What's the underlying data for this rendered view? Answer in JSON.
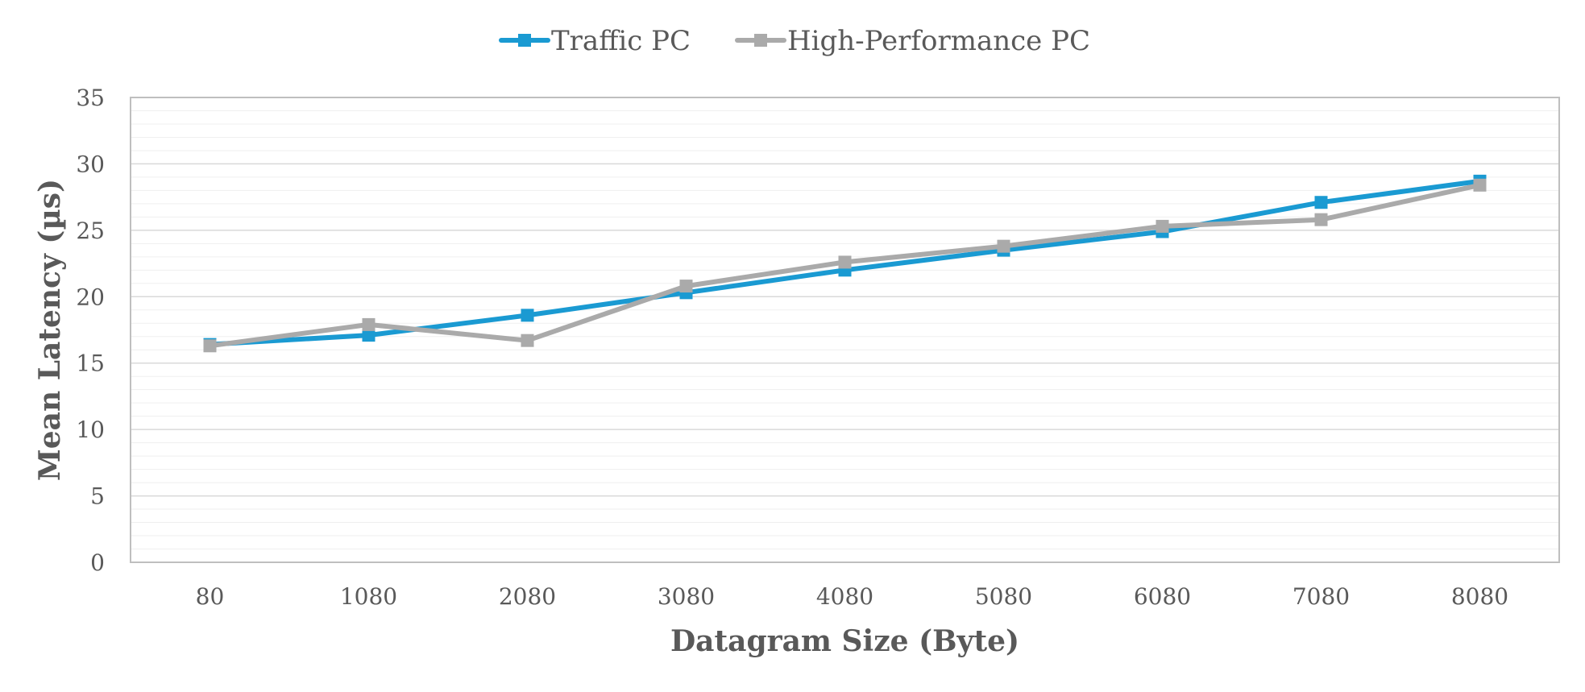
{
  "chart_data": {
    "type": "line",
    "title": "",
    "xlabel": "Datagram Size (Byte)",
    "ylabel": "Mean Latency (µs)",
    "categories": [
      "80",
      "1080",
      "2080",
      "3080",
      "4080",
      "5080",
      "6080",
      "7080",
      "8080"
    ],
    "y_ticks": [
      "0",
      "5",
      "10",
      "15",
      "20",
      "25",
      "30",
      "35"
    ],
    "ylim": [
      0,
      35
    ],
    "major_grid": true,
    "minor_grid": true,
    "legend_position": "top-center",
    "series": [
      {
        "name": "Traffic PC",
        "color": "#1a9ad2",
        "marker": "square",
        "values": [
          16.4,
          17.1,
          18.6,
          20.3,
          22.0,
          23.5,
          24.9,
          27.1,
          28.7
        ]
      },
      {
        "name": "High-Performance PC",
        "color": "#aaaaaa",
        "marker": "square",
        "values": [
          16.3,
          17.9,
          16.7,
          20.8,
          22.6,
          23.8,
          25.3,
          25.8,
          28.4
        ]
      }
    ]
  }
}
